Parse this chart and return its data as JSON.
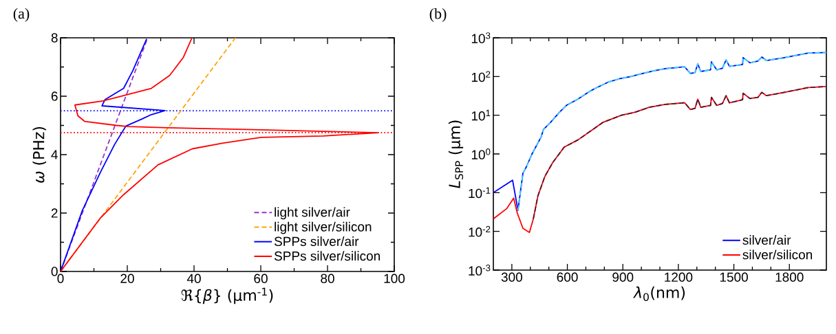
{
  "chart_data": [
    {
      "type": "line",
      "title": "(a)",
      "xlabel": "ℜ{*β*} (μm$^{-1}$)",
      "ylabel": "*ω* (PHz)",
      "xlim": [
        0,
        100
      ],
      "ylim": [
        0,
        8
      ],
      "xticks": [
        0,
        20,
        40,
        60,
        80,
        100
      ],
      "yticks": [
        0,
        2,
        4,
        6,
        8
      ],
      "legend": "bottom right",
      "series": [
        {
          "name": "light silver/air",
          "color": "#9933cc",
          "line_style": "dashed",
          "x": [
            0,
            26.1
          ],
          "values": [
            0,
            8
          ]
        },
        {
          "name": "light silver/silicon",
          "color": "#ffa500",
          "line_style": "dashed",
          "x": [
            0,
            52.4
          ],
          "values": [
            0,
            8
          ]
        },
        {
          "name": "SPPs silver/air",
          "color": "#0000ff",
          "line_style": "solid",
          "x": [
            0,
            6.5,
            12.0,
            16.2,
            19.6,
            24.4,
            27.2,
            31.3,
            12.4,
            13.3,
            18.9,
            21.6,
            25.8
          ],
          "values": [
            0,
            2.08,
            3.41,
            4.35,
            4.98,
            5.22,
            5.37,
            5.51,
            5.67,
            5.88,
            6.27,
            6.86,
            7.96
          ]
        },
        {
          "name": "SPPs silver/silicon",
          "color": "#ff0000",
          "line_style": "solid",
          "x": [
            0,
            12.0,
            18.9,
            29.2,
            39.5,
            48.5,
            60.1,
            78.7,
            95.2,
            60.1,
            32.0,
            20.3,
            16.8,
            7.2,
            5.2,
            4.3,
            12.7,
            27.2,
            32.7,
            36.8,
            39.4
          ],
          "values": [
            0,
            1.84,
            2.63,
            3.65,
            4.2,
            4.39,
            4.59,
            4.64,
            4.75,
            4.85,
            4.92,
            4.96,
            5.0,
            5.14,
            5.33,
            5.7,
            5.84,
            6.27,
            6.71,
            7.33,
            8.0
          ]
        }
      ],
      "ref_lines": [
        {
          "axis": "y",
          "value": 5.5,
          "color": "#0000ff",
          "line_style": "dotted"
        },
        {
          "axis": "y",
          "value": 4.75,
          "color": "#ff0000",
          "line_style": "dotted"
        }
      ]
    },
    {
      "type": "line",
      "title": "(b)",
      "xlabel": "*λ*$_{0}$(nm)",
      "ylabel": "*L*$_{SPP}$ (μm)",
      "log": "y",
      "xlim": [
        200,
        2000
      ],
      "ylim": [
        0.001,
        1000
      ],
      "xticks": [
        300,
        600,
        900,
        1200,
        1500,
        1800
      ],
      "yticks": [
        {
          "value": 0.001,
          "label": "10$^{-3}$"
        },
        {
          "value": 0.01,
          "label": "10$^{-2}$"
        },
        {
          "value": 0.1,
          "label": "10$^{-1}$"
        },
        {
          "value": 1,
          "label": "10$^{0}$"
        },
        {
          "value": 10,
          "label": "10$^{1}$"
        },
        {
          "value": 100,
          "label": "10$^{2}$"
        },
        {
          "value": 1000,
          "label": "10$^{3}$"
        }
      ],
      "legend": "bottom right",
      "series": [
        {
          "name": "silver/air",
          "color": "#0000ff",
          "line_style": "solid",
          "x": [
            200,
            304,
            333,
            360,
            378,
            409,
            459,
            471,
            509,
            558,
            595,
            657,
            719,
            757,
            819,
            880,
            943,
            992,
            1066,
            1129,
            1190,
            1234,
            1265,
            1290,
            1305,
            1321,
            1374,
            1379,
            1407,
            1438,
            1458,
            1476,
            1547,
            1550,
            1587,
            1630,
            1651,
            1676,
            1773,
            1903,
            2000
          ],
          "values": [
            0.1,
            0.21,
            0.035,
            0.32,
            0.46,
            1,
            2.8,
            4.3,
            6.5,
            12,
            18,
            26,
            41,
            51,
            71,
            87,
            100,
            115,
            140,
            160,
            170,
            178,
            120,
            126,
            213,
            135,
            149,
            240,
            149,
            163,
            268,
            182,
            205,
            307,
            226,
            250,
            318,
            259,
            307,
            406,
            418
          ]
        },
        {
          "name": "silver/silicon",
          "color": "#ff0000",
          "line_style": "solid",
          "x": [
            200,
            273,
            310,
            329,
            360,
            395,
            416,
            441,
            478,
            521,
            583,
            657,
            732,
            794,
            893,
            968,
            1042,
            1129,
            1234,
            1265,
            1290,
            1305,
            1321,
            1374,
            1379,
            1407,
            1438,
            1458,
            1476,
            1547,
            1550,
            1587,
            1630,
            1651,
            1676,
            1773,
            1903,
            2000
          ],
          "values": [
            0.021,
            0.039,
            0.072,
            0.03,
            0.012,
            0.0094,
            0.021,
            0.083,
            0.26,
            0.6,
            1.5,
            2.3,
            4.1,
            6.6,
            10,
            12,
            16,
            19,
            21,
            14,
            15,
            26,
            16,
            18,
            29,
            18,
            20,
            32,
            21,
            25,
            37,
            27,
            29,
            39,
            32,
            39,
            52,
            55
          ]
        },
        {
          "color": "#33ddee",
          "line_style": "dashed",
          "x": [
            333,
            360,
            378,
            409,
            459,
            471,
            509,
            558,
            595,
            657,
            719,
            757,
            819,
            880,
            943,
            992,
            1066,
            1129,
            1190,
            1234,
            1265,
            1290,
            1305,
            1321,
            1374,
            1379,
            1407,
            1438,
            1458,
            1476,
            1547,
            1550,
            1587,
            1630,
            1651,
            1676,
            1773,
            1903,
            2000
          ],
          "values": [
            0.035,
            0.32,
            0.46,
            1,
            2.8,
            4.3,
            6.5,
            12,
            18,
            26,
            41,
            51,
            71,
            87,
            100,
            115,
            140,
            160,
            170,
            178,
            120,
            126,
            213,
            135,
            149,
            240,
            149,
            163,
            268,
            182,
            205,
            307,
            226,
            250,
            318,
            259,
            307,
            406,
            418
          ]
        },
        {
          "color": "#4b1a3a",
          "line_style": "dashed",
          "x": [
            416,
            441,
            478,
            521,
            583,
            657,
            732,
            794,
            893,
            968,
            1042,
            1129,
            1234,
            1265,
            1290,
            1305,
            1321,
            1374,
            1379,
            1407,
            1438,
            1458,
            1476,
            1547,
            1550,
            1587,
            1630,
            1651,
            1676,
            1773,
            1903,
            2000
          ],
          "values": [
            0.021,
            0.083,
            0.26,
            0.6,
            1.5,
            2.3,
            4.1,
            6.6,
            10,
            12,
            16,
            19,
            21,
            14,
            15,
            26,
            16,
            18,
            29,
            18,
            20,
            32,
            21,
            25,
            37,
            27,
            29,
            39,
            32,
            39,
            52,
            55
          ]
        }
      ]
    }
  ]
}
